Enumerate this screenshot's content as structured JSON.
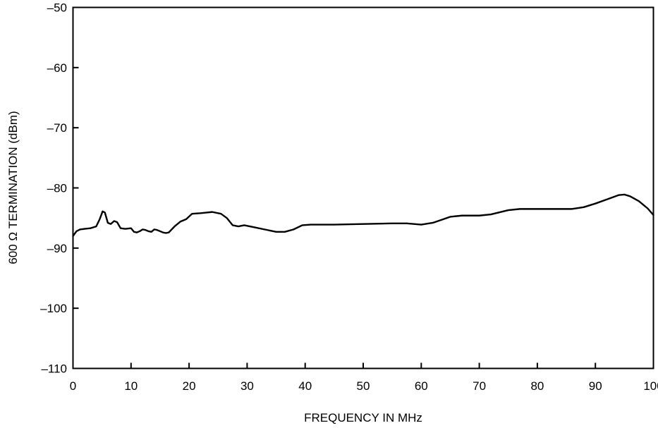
{
  "chart_data": {
    "type": "line",
    "xlabel": "FREQUENCY IN MHz",
    "ylabel": "600 Ω TERMINATION (dBm)",
    "xlim": [
      0,
      100
    ],
    "ylim": [
      -110,
      -50
    ],
    "x_ticks": [
      0,
      10,
      20,
      30,
      40,
      50,
      60,
      70,
      80,
      90,
      100
    ],
    "x_tick_labels": [
      "0",
      "10",
      "20",
      "30",
      "40",
      "50",
      "60",
      "70",
      "80",
      "90",
      "100"
    ],
    "y_ticks": [
      -50,
      -60,
      -70,
      -80,
      -90,
      -100,
      -110
    ],
    "y_tick_labels": [
      "–50",
      "–60",
      "–70",
      "–80",
      "–90",
      "–100",
      "–110"
    ],
    "grid": false,
    "series": [
      {
        "x": [
          0,
          0.6,
          1.2,
          2,
          3,
          4,
          4.6,
          5.1,
          5.5,
          6,
          6.5,
          7.1,
          7.6,
          8.2,
          9,
          10,
          10.5,
          11,
          11.5,
          12,
          12.5,
          13,
          13.5,
          14,
          14.5,
          15,
          15.5,
          16,
          16.5,
          17.5,
          18.5,
          19.5,
          20.5,
          22,
          24,
          25.5,
          26.5,
          27.5,
          28.5,
          29.5,
          31,
          33,
          35,
          36.5,
          38,
          39.5,
          41,
          45,
          50,
          55,
          57.5,
          60,
          62,
          63.5,
          65,
          67,
          70,
          72,
          75,
          77,
          80,
          83,
          86,
          88,
          90,
          92,
          94,
          95,
          96,
          97.5,
          99,
          100
        ],
        "y": [
          -88.0,
          -87.2,
          -86.9,
          -86.8,
          -86.7,
          -86.4,
          -85.2,
          -83.9,
          -84.1,
          -85.8,
          -86.0,
          -85.5,
          -85.7,
          -86.7,
          -86.8,
          -86.7,
          -87.3,
          -87.4,
          -87.2,
          -86.9,
          -87.0,
          -87.2,
          -87.3,
          -86.9,
          -87.0,
          -87.2,
          -87.4,
          -87.5,
          -87.4,
          -86.4,
          -85.6,
          -85.2,
          -84.3,
          -84.2,
          -84.0,
          -84.3,
          -85.0,
          -86.2,
          -86.4,
          -86.2,
          -86.5,
          -86.9,
          -87.3,
          -87.3,
          -86.9,
          -86.2,
          -86.1,
          -86.1,
          -86.0,
          -85.9,
          -85.9,
          -86.1,
          -85.8,
          -85.3,
          -84.8,
          -84.6,
          -84.6,
          -84.4,
          -83.7,
          -83.5,
          -83.5,
          -83.5,
          -83.5,
          -83.2,
          -82.6,
          -81.9,
          -81.2,
          -81.1,
          -81.4,
          -82.2,
          -83.4,
          -84.5
        ]
      }
    ]
  }
}
